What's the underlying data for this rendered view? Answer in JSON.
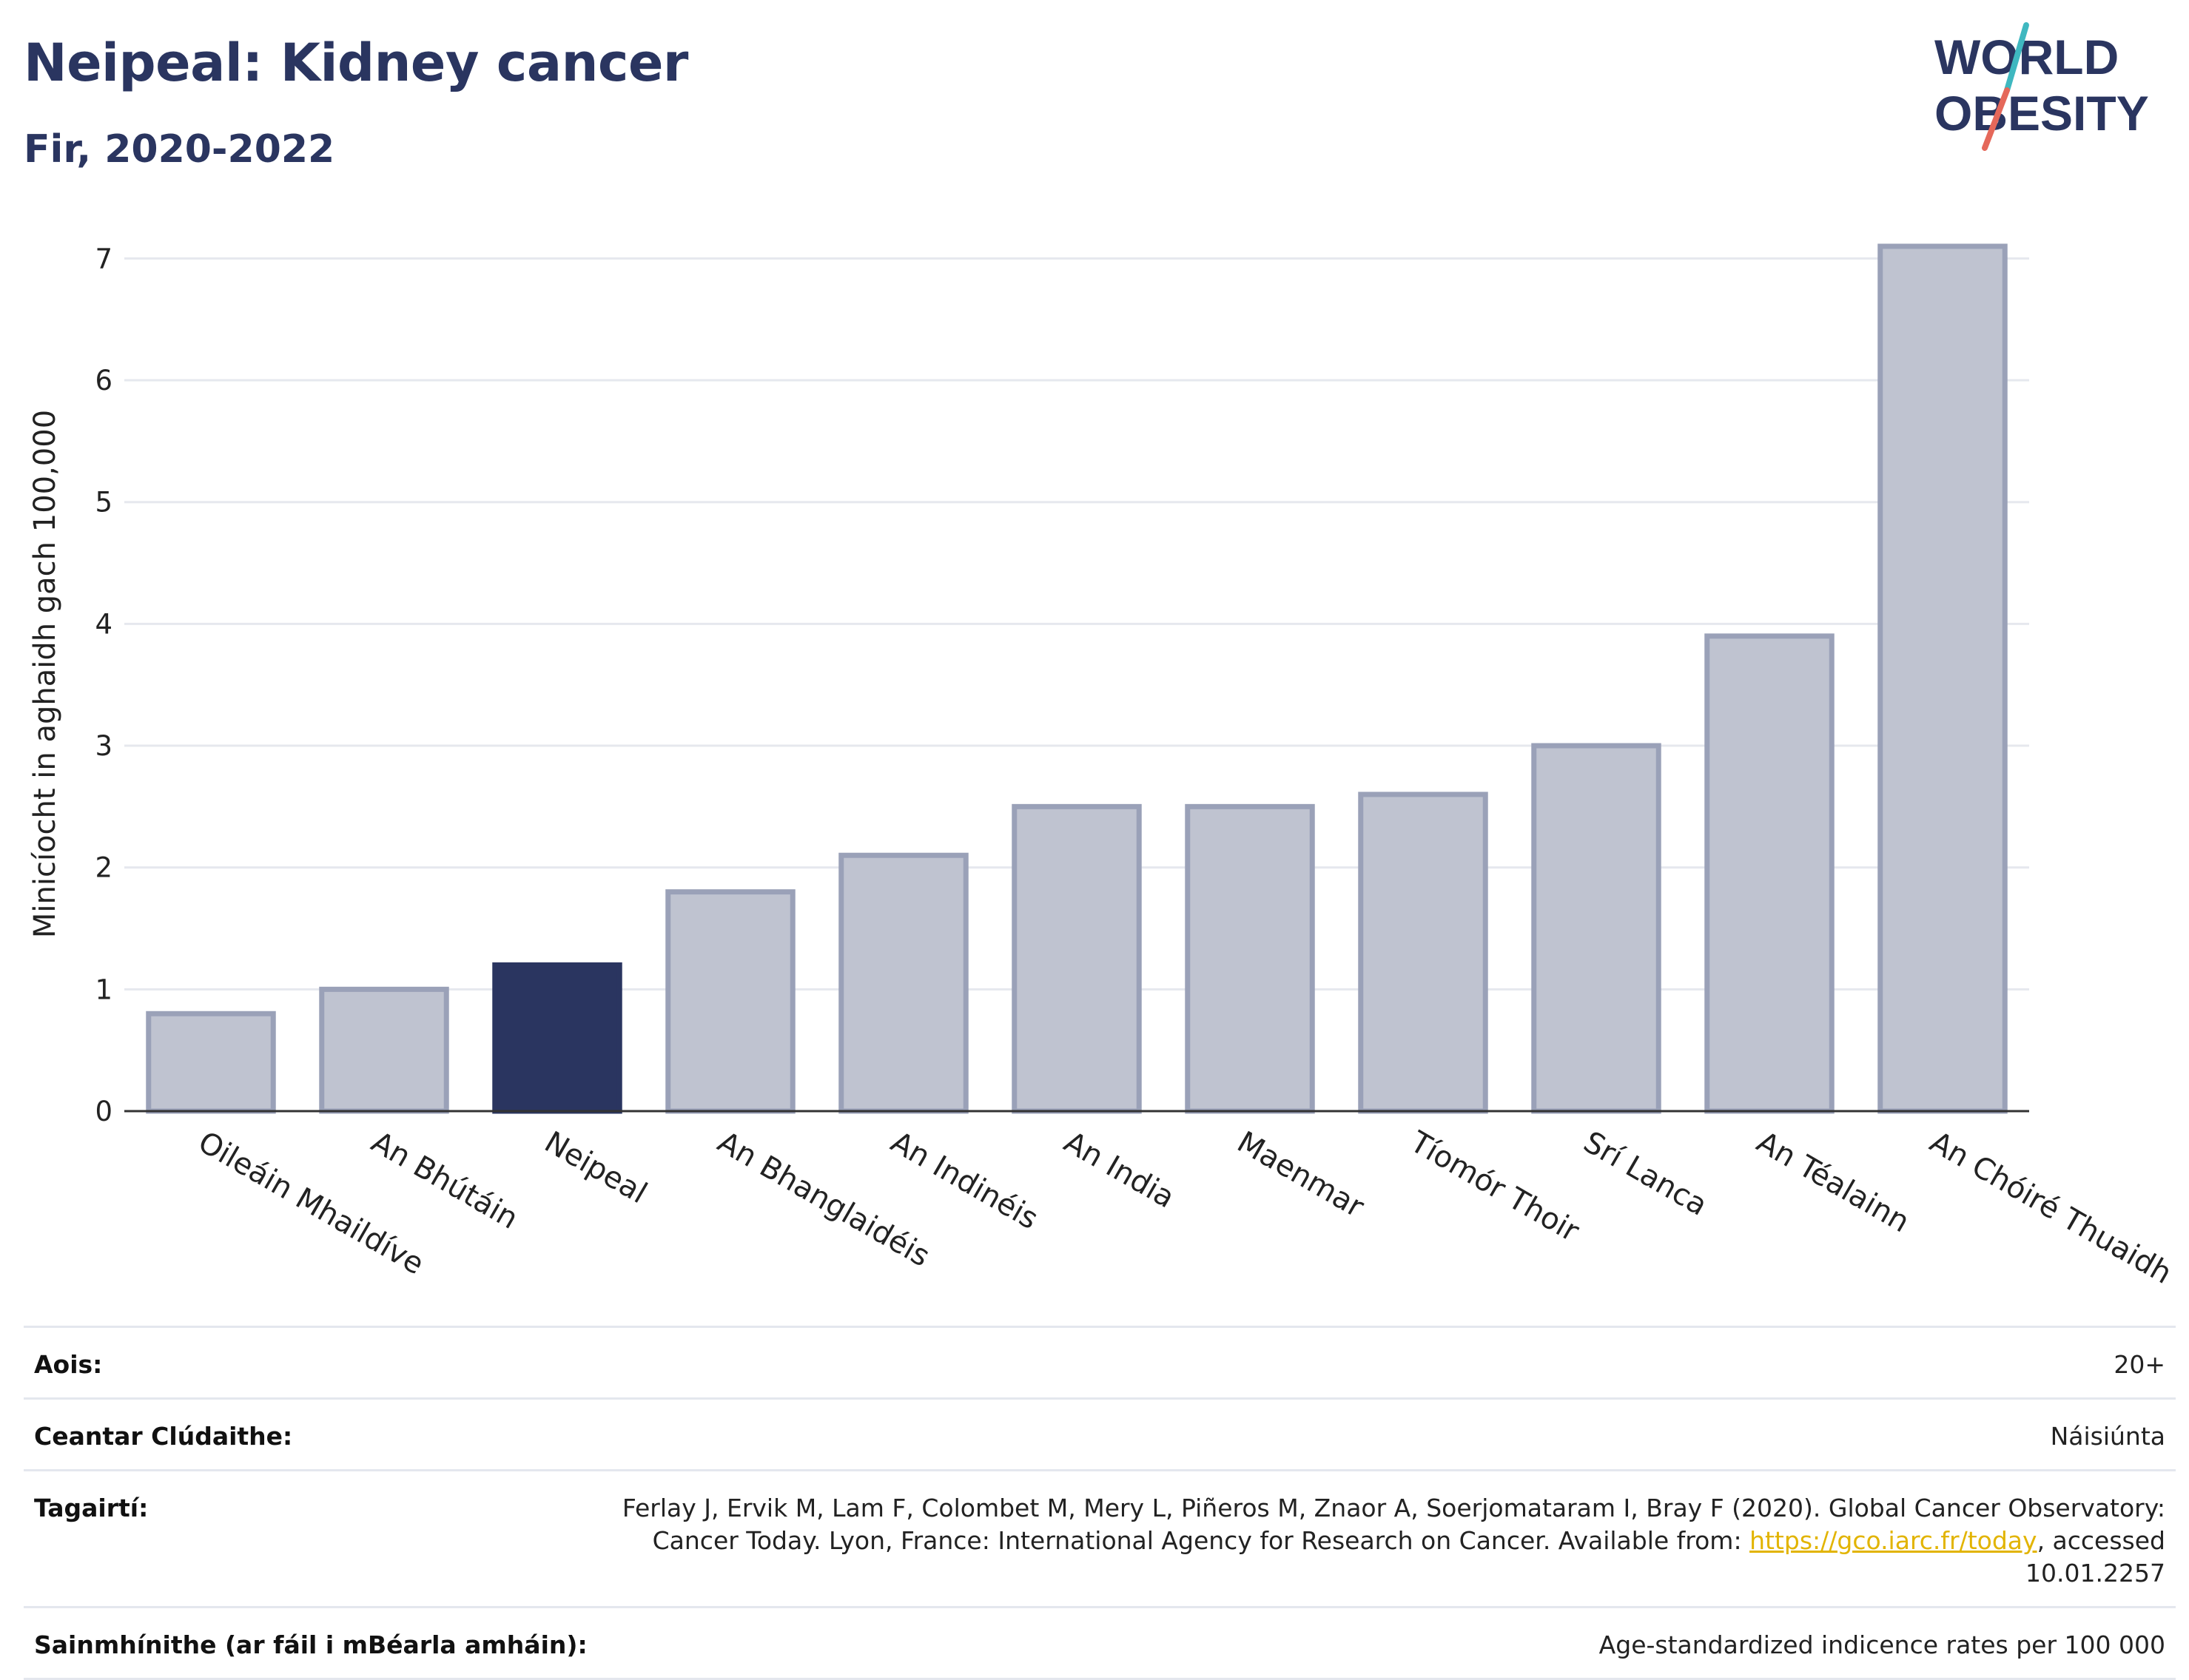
{
  "header": {
    "title": "Neipeal: Kidney cancer",
    "subtitle": "Fir, 2020-2022"
  },
  "logo": {
    "line1": "WORLD",
    "line2": "OBESITY",
    "text_color": "#2a3560",
    "slash_colors": [
      "#3fb8c0",
      "#e5685a"
    ]
  },
  "chart_data": {
    "type": "bar",
    "title": "Neipeal: Kidney cancer",
    "subtitle": "Fir, 2020-2022",
    "xlabel": "",
    "ylabel": "Minicíocht in aghaidh gach 100,000",
    "ylim": [
      0,
      7.3
    ],
    "yticks": [
      0,
      1,
      2,
      3,
      4,
      5,
      6,
      7
    ],
    "grid": true,
    "categories": [
      "Oileáin Mhaildíve",
      "An Bhútáin",
      "Neipeal",
      "An Bhanglaidéis",
      "An Indinéis",
      "An India",
      "Maenmar",
      "Tíomór Thoir",
      "Srí Lanca",
      "An Téalainn",
      "An Chóiré Thuaidh"
    ],
    "values": [
      0.8,
      1.0,
      1.2,
      1.8,
      2.1,
      2.5,
      2.5,
      2.6,
      3.0,
      3.9,
      7.1
    ],
    "highlight_category": "Neipeal",
    "colors": {
      "bar": "#bfc3d0",
      "bar_border": "#9aa1b8",
      "highlight": "#2a3560",
      "grid": "#e6e8ee",
      "axis": "#333333"
    }
  },
  "info": {
    "rows": [
      {
        "label": "Aois:",
        "value": "20+"
      },
      {
        "label": "Ceantar Clúdaithe:",
        "value": "Náisiúnta"
      },
      {
        "label": "Tagairtí:",
        "value_before": "Ferlay J, Ervik M, Lam F, Colombet M, Mery L, Piñeros M, Znaor A, Soerjomataram I, Bray F (2020). Global Cancer Observatory: Cancer Today. Lyon, France: International Agency for Research on Cancer. Available from: ",
        "link": "https://gco.iarc.fr/today",
        "value_after": ", accessed 10.01.2257"
      },
      {
        "label": "Sainmhínithe (ar fáil i mBéarla amháin):",
        "value": "Age-standardized indicence rates per 100 000"
      }
    ]
  }
}
